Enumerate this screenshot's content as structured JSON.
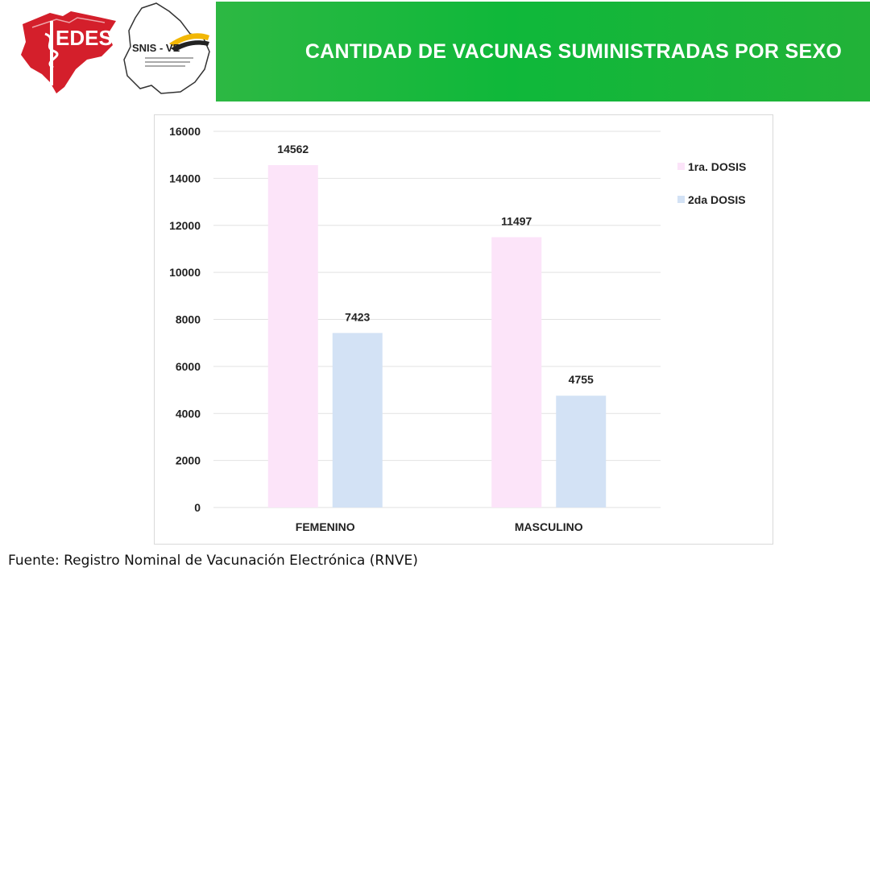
{
  "header": {
    "title": "CANTIDAD DE VACUNAS SUMINISTRADAS POR SEXO",
    "logo_sedes_text": "EDES",
    "logo_snis_text": "SNIS - VE",
    "banner_color": "#0fb83a"
  },
  "source": "Fuente: Registro Nominal de Vacunación Electrónica (RNVE)",
  "chart_data": {
    "type": "bar",
    "categories": [
      "FEMENINO",
      "MASCULINO"
    ],
    "series": [
      {
        "name": "1ra. DOSIS",
        "values": [
          14562,
          11497
        ],
        "color": "#fce4f9"
      },
      {
        "name": "2da DOSIS",
        "values": [
          7423,
          4755
        ],
        "color": "#d3e2f5"
      }
    ],
    "yticks": [
      "0",
      "2000",
      "4000",
      "6000",
      "8000",
      "10000",
      "12000",
      "14000",
      "16000"
    ],
    "ylim": [
      0,
      16000
    ],
    "grid": true,
    "legend_position": "right",
    "xlabel": "",
    "ylabel": ""
  }
}
